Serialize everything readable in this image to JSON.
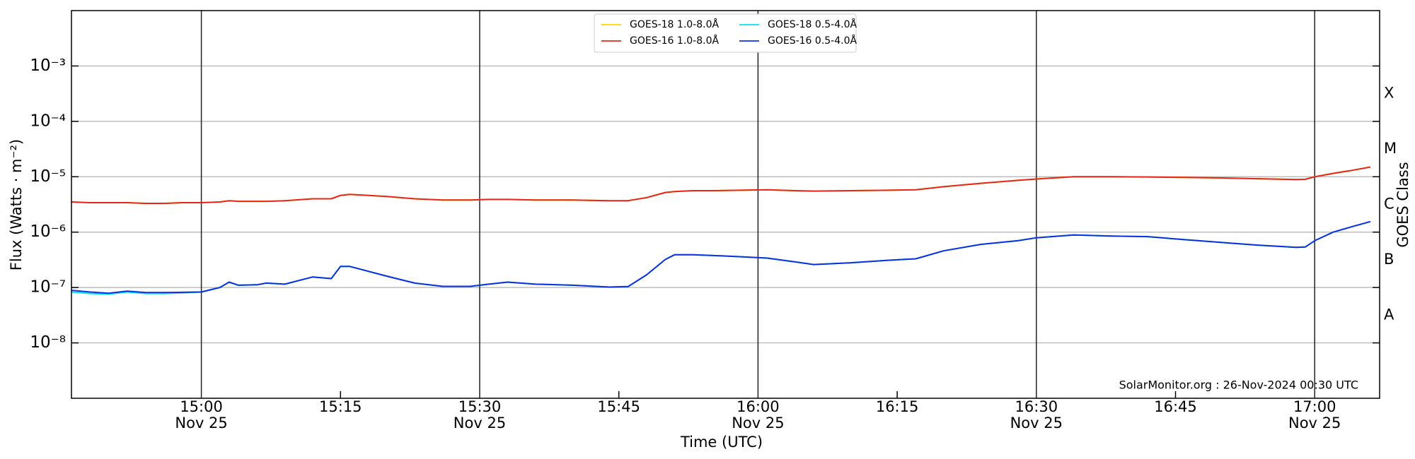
{
  "chart_data": {
    "type": "line",
    "ylabel": "Flux (Watts · m⁻²)",
    "xlabel": "Time (UTC)",
    "y2label": "GOES Class",
    "annotation": "SolarMonitor.org : 26-Nov-2024 00:30 UTC",
    "log_scale": true,
    "grid": true,
    "legend": "upper center",
    "ylim": [
      1e-09,
      0.01
    ],
    "yticks": [
      {
        "value": 1e-08,
        "label": "10⁻⁸"
      },
      {
        "value": 1e-07,
        "label": "10⁻⁷"
      },
      {
        "value": 1e-06,
        "label": "10⁻⁶"
      },
      {
        "value": 1e-05,
        "label": "10⁻⁵"
      },
      {
        "value": 0.0001,
        "label": "10⁻⁴"
      },
      {
        "value": 0.001,
        "label": "10⁻³"
      }
    ],
    "y2lim": [
      1e-09,
      0.01
    ],
    "y2ticks": [
      {
        "value": 0.000316,
        "label": "X"
      },
      {
        "value": 3.16e-05,
        "label": "M"
      },
      {
        "value": 3.16e-06,
        "label": "C"
      },
      {
        "value": 3.16e-07,
        "label": "B"
      },
      {
        "value": 3.16e-08,
        "label": "A"
      }
    ],
    "xlim": [
      "14:46",
      "17:07"
    ],
    "xticks": [
      {
        "value": "15:00",
        "label": "15:00",
        "date": "Nov 25"
      },
      {
        "value": "15:15",
        "label": "15:15"
      },
      {
        "value": "15:30",
        "label": "15:30",
        "date": "Nov 25"
      },
      {
        "value": "15:45",
        "label": "15:45"
      },
      {
        "value": "16:00",
        "label": "16:00",
        "date": "Nov 25"
      },
      {
        "value": "16:15",
        "label": "16:15"
      },
      {
        "value": "16:30",
        "label": "16:30",
        "date": "Nov 25"
      },
      {
        "value": "16:45",
        "label": "16:45"
      },
      {
        "value": "17:00",
        "label": "17:00",
        "date": "Nov 25"
      }
    ],
    "x": [
      "14:46",
      "14:48",
      "14:50",
      "14:52",
      "14:54",
      "14:56",
      "14:58",
      "15:00",
      "15:02",
      "15:03",
      "15:04",
      "15:06",
      "15:07",
      "15:09",
      "15:12",
      "15:14",
      "15:15",
      "15:16",
      "15:20",
      "15:23",
      "15:26",
      "15:29",
      "15:31",
      "15:33",
      "15:36",
      "15:40",
      "15:44",
      "15:46",
      "15:48",
      "15:50",
      "15:51",
      "15:53",
      "15:55",
      "15:58",
      "16:01",
      "16:04",
      "16:06",
      "16:10",
      "16:14",
      "16:17",
      "16:20",
      "16:24",
      "16:28",
      "16:30",
      "16:34",
      "16:38",
      "16:42",
      "16:46",
      "16:50",
      "16:54",
      "16:58",
      "16:59",
      "17:00",
      "17:02",
      "17:04",
      "17:06"
    ],
    "series": [
      {
        "name": "GOES-18 1.0-8.0Å",
        "color": "#ffd700",
        "values": [
          3.5e-06,
          3.4e-06,
          3.4e-06,
          3.4e-06,
          3.3e-06,
          3.3e-06,
          3.4e-06,
          3.4e-06,
          3.5e-06,
          3.7e-06,
          3.6e-06,
          3.6e-06,
          3.6e-06,
          3.7e-06,
          4e-06,
          4e-06,
          4.6e-06,
          4.8e-06,
          4.4e-06,
          4e-06,
          3.8e-06,
          3.8e-06,
          3.9e-06,
          3.9e-06,
          3.8e-06,
          3.8e-06,
          3.7e-06,
          3.7e-06,
          4.2e-06,
          5.2e-06,
          5.4e-06,
          5.6e-06,
          5.6e-06,
          5.7e-06,
          5.8e-06,
          5.6e-06,
          5.5e-06,
          5.6e-06,
          5.7e-06,
          5.8e-06,
          6.6e-06,
          7.6e-06,
          8.6e-06,
          9.1e-06,
          1e-05,
          1e-05,
          9.9e-06,
          9.7e-06,
          9.5e-06,
          9.2e-06,
          8.9e-06,
          9e-06,
          1e-05,
          1.15e-05,
          1.3e-05,
          1.5e-05
        ]
      },
      {
        "name": "GOES-16 1.0-8.0Å",
        "color": "#e8251a",
        "values": [
          3.5e-06,
          3.4e-06,
          3.4e-06,
          3.4e-06,
          3.3e-06,
          3.3e-06,
          3.4e-06,
          3.4e-06,
          3.5e-06,
          3.7e-06,
          3.6e-06,
          3.6e-06,
          3.6e-06,
          3.7e-06,
          4e-06,
          4e-06,
          4.6e-06,
          4.8e-06,
          4.4e-06,
          4e-06,
          3.8e-06,
          3.8e-06,
          3.9e-06,
          3.9e-06,
          3.8e-06,
          3.8e-06,
          3.7e-06,
          3.7e-06,
          4.2e-06,
          5.2e-06,
          5.4e-06,
          5.6e-06,
          5.6e-06,
          5.7e-06,
          5.8e-06,
          5.6e-06,
          5.5e-06,
          5.6e-06,
          5.7e-06,
          5.8e-06,
          6.6e-06,
          7.6e-06,
          8.6e-06,
          9.1e-06,
          1e-05,
          1e-05,
          9.9e-06,
          9.7e-06,
          9.5e-06,
          9.2e-06,
          8.9e-06,
          9e-06,
          1e-05,
          1.15e-05,
          1.3e-05,
          1.5e-05
        ]
      },
      {
        "name": "GOES-18 0.5-4.0Å",
        "color": "#00e5ee",
        "values": [
          8.3e-08,
          7.8e-08,
          7.6e-08,
          8.3e-08,
          7.8e-08,
          7.8e-08,
          8e-08,
          8.3e-08,
          1e-07,
          1.25e-07,
          1.1e-07,
          1.12e-07,
          1.2e-07,
          1.15e-07,
          1.55e-07,
          1.45e-07,
          2.4e-07,
          2.4e-07,
          1.6e-07,
          1.2e-07,
          1.05e-07,
          1.05e-07,
          1.15e-07,
          1.25e-07,
          1.15e-07,
          1.1e-07,
          1.02e-07,
          1.04e-07,
          1.7e-07,
          3.2e-07,
          3.9e-07,
          3.9e-07,
          3.8e-07,
          3.6e-07,
          3.4e-07,
          2.9e-07,
          2.6e-07,
          2.8e-07,
          3.1e-07,
          3.3e-07,
          4.6e-07,
          6e-07,
          7e-07,
          7.9e-07,
          8.9e-07,
          8.5e-07,
          8.3e-07,
          7.3e-07,
          6.5e-07,
          5.8e-07,
          5.3e-07,
          5.4e-07,
          7e-07,
          1e-06,
          1.25e-06,
          1.55e-06
        ]
      },
      {
        "name": "GOES-16 0.5-4.0Å",
        "color": "#1030e0",
        "values": [
          8.9e-08,
          8.3e-08,
          7.9e-08,
          8.6e-08,
          8.1e-08,
          8.1e-08,
          8.2e-08,
          8.3e-08,
          1e-07,
          1.25e-07,
          1.1e-07,
          1.12e-07,
          1.2e-07,
          1.15e-07,
          1.55e-07,
          1.45e-07,
          2.4e-07,
          2.4e-07,
          1.6e-07,
          1.2e-07,
          1.05e-07,
          1.05e-07,
          1.15e-07,
          1.25e-07,
          1.15e-07,
          1.1e-07,
          1.02e-07,
          1.04e-07,
          1.7e-07,
          3.2e-07,
          3.9e-07,
          3.9e-07,
          3.8e-07,
          3.6e-07,
          3.4e-07,
          2.9e-07,
          2.6e-07,
          2.8e-07,
          3.1e-07,
          3.3e-07,
          4.6e-07,
          6e-07,
          7e-07,
          7.9e-07,
          8.9e-07,
          8.5e-07,
          8.3e-07,
          7.3e-07,
          6.5e-07,
          5.8e-07,
          5.3e-07,
          5.4e-07,
          7e-07,
          1e-06,
          1.25e-06,
          1.55e-06
        ]
      }
    ]
  }
}
